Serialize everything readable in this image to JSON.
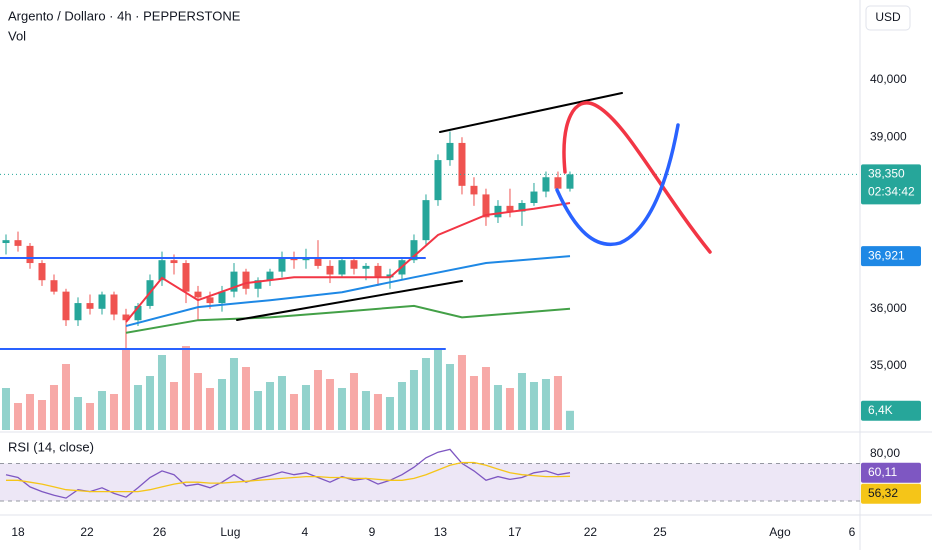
{
  "chart_data": {
    "type": "candlestick",
    "title": "Argento / Dollaro · 4h · PEPPERSTONE",
    "currency": "USD",
    "countdown": "02:34:42",
    "last_price_label": "38,350",
    "up_color": "#26a69a",
    "down_color": "#ef5350",
    "xlim": [
      -0.5,
      71.17
    ],
    "xticks": [
      {
        "value": 1,
        "label": "18"
      },
      {
        "value": 6.75,
        "label": "22"
      },
      {
        "value": 12.8,
        "label": "26"
      },
      {
        "value": 18.7,
        "label": "Lug"
      },
      {
        "value": 24.9,
        "label": "4"
      },
      {
        "value": 30.5,
        "label": "9"
      },
      {
        "value": 36.2,
        "label": "13"
      },
      {
        "value": 42.4,
        "label": "17"
      },
      {
        "value": 48.7,
        "label": "22"
      },
      {
        "value": 54.5,
        "label": "25"
      },
      {
        "value": 64.5,
        "label": "Ago"
      },
      {
        "value": 70.5,
        "label": "6"
      }
    ],
    "ylim": [
      33881,
      41399
    ],
    "yticks": [
      {
        "value": 35000,
        "label": "35,000"
      },
      {
        "value": 36000,
        "label": "36,000"
      },
      {
        "value": 39000,
        "label": "39,000"
      },
      {
        "value": 40000,
        "label": "40,000"
      }
    ],
    "open": [
      37150,
      37200,
      37100,
      36800,
      36500,
      36300,
      35800,
      36100,
      36000,
      36250,
      35900,
      35800,
      36050,
      36500,
      36850,
      36800,
      36300,
      36200,
      36100,
      36300,
      36650,
      36350,
      36500,
      36650,
      36900,
      36850,
      36900,
      36750,
      36600,
      36850,
      36700,
      36750,
      36550,
      36600,
      36850,
      37200,
      37900,
      38600,
      38900,
      38150,
      38000,
      37600,
      37800,
      37700,
      37850,
      38050,
      38300,
      38100
    ],
    "high": [
      37300,
      37350,
      37150,
      36850,
      36600,
      36350,
      36200,
      36250,
      36300,
      36300,
      36000,
      36100,
      36600,
      37000,
      36950,
      36850,
      36400,
      36300,
      36400,
      36800,
      36700,
      36550,
      36700,
      37000,
      37000,
      37050,
      37200,
      36850,
      36900,
      36900,
      36800,
      36800,
      36700,
      36900,
      37300,
      38000,
      38700,
      39100,
      39000,
      38300,
      38100,
      37900,
      38100,
      37900,
      38200,
      38400,
      38400,
      38400
    ],
    "low": [
      36950,
      37000,
      36700,
      36400,
      36250,
      35700,
      35700,
      35900,
      35900,
      35800,
      35300,
      35700,
      36000,
      36400,
      36600,
      36100,
      35800,
      36000,
      35950,
      36200,
      36250,
      36200,
      36400,
      36550,
      36700,
      36700,
      36700,
      36450,
      36550,
      36600,
      36500,
      36400,
      36350,
      36500,
      36800,
      37100,
      37800,
      38500,
      38000,
      37800,
      37450,
      37500,
      37600,
      37450,
      37800,
      37950,
      38000,
      38050
    ],
    "close": [
      37200,
      37100,
      36800,
      36500,
      36300,
      35800,
      36100,
      36000,
      36250,
      35900,
      35800,
      36050,
      36500,
      36850,
      36800,
      36300,
      36200,
      36100,
      36300,
      36650,
      36350,
      36500,
      36650,
      36900,
      36850,
      36900,
      36750,
      36600,
      36850,
      36700,
      36750,
      36550,
      36600,
      36850,
      37200,
      37900,
      38600,
      38900,
      38150,
      38000,
      37600,
      37800,
      37700,
      37850,
      38050,
      38300,
      38100,
      38350
    ],
    "overlays": [
      {
        "color": "#f23645",
        "x": [
          10,
          13,
          16,
          20,
          24,
          28,
          32,
          36,
          40,
          44,
          47
        ],
        "values": [
          35770,
          36540,
          36150,
          36450,
          36550,
          36550,
          36550,
          37290,
          37640,
          37750,
          37850
        ]
      },
      {
        "color": "#1e88e5",
        "x": [
          10,
          16,
          22,
          28,
          34,
          40,
          47
        ],
        "values": [
          35700,
          36030,
          36150,
          36290,
          36550,
          36800,
          36921
        ],
        "last_label": "36,921"
      },
      {
        "color": "#43a047",
        "x": [
          10,
          16,
          22,
          28,
          34,
          38,
          47
        ],
        "values": [
          35580,
          35800,
          35850,
          35950,
          36050,
          35850,
          36000
        ]
      }
    ],
    "volume": {
      "name": "Vol",
      "vlim": [
        0,
        30000
      ],
      "last_label": "6,4K",
      "values": [
        14000,
        9000,
        12000,
        10000,
        15000,
        22000,
        11000,
        9000,
        13000,
        12000,
        27000,
        15000,
        18000,
        25000,
        16000,
        28000,
        19000,
        14000,
        17000,
        24000,
        21000,
        13000,
        16000,
        18000,
        12000,
        15000,
        20000,
        17000,
        14000,
        19000,
        13000,
        12000,
        11000,
        16000,
        20000,
        24000,
        27000,
        22000,
        25000,
        18000,
        21000,
        15000,
        14000,
        19000,
        16000,
        17000,
        18000,
        6400
      ]
    },
    "rsi": {
      "name": "RSI (14, close)",
      "ylim": [
        15,
        95
      ],
      "band": [
        30,
        70
      ],
      "yticks": [
        {
          "value": 80,
          "label": "80,00"
        }
      ],
      "series": [
        {
          "color": "#7e57c2",
          "last_label": "60,11",
          "values": [
            58,
            55,
            45,
            40,
            36,
            33,
            42,
            40,
            44,
            38,
            34,
            44,
            55,
            62,
            58,
            46,
            48,
            44,
            50,
            58,
            50,
            54,
            57,
            61,
            58,
            60,
            55,
            50,
            56,
            52,
            54,
            48,
            52,
            58,
            66,
            76,
            82,
            85,
            70,
            62,
            52,
            56,
            53,
            55,
            60,
            62,
            58,
            60.11
          ]
        },
        {
          "color": "#f5c518",
          "last_label": "56,32",
          "values": [
            52,
            52,
            50,
            48,
            45,
            42,
            41,
            40,
            40,
            40,
            40,
            40,
            42,
            45,
            48,
            50,
            50,
            49,
            49,
            50,
            51,
            52,
            53,
            54,
            55,
            56,
            56,
            55,
            55,
            54,
            54,
            53,
            52,
            52,
            54,
            58,
            63,
            68,
            71,
            71,
            68,
            64,
            60,
            58,
            57,
            56,
            56,
            56.32
          ]
        }
      ]
    }
  }
}
